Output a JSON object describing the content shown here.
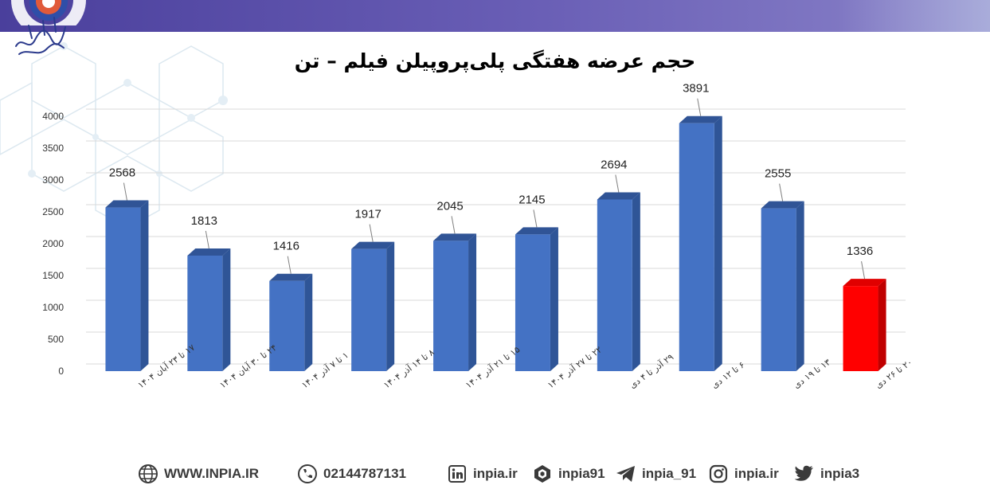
{
  "chart_data": {
    "type": "bar",
    "title": "حجم عرضه هفتگی پلی‌پروپیلن فیلم – تن",
    "categories": [
      "۱۷ تا ۲۳ آبان ۱۴۰۴",
      "۲۴ تا ۳۰ آبان ۱۴۰۴",
      "۱ تا ۷ آذر ۱۴۰۴",
      "۸ تا ۱۴ آذر ۱۴۰۴",
      "۱۵ تا ۲۱ آذر ۱۴۰۴",
      "۲۲ تا ۲۷ آذر ۱۴۰۴",
      "۲۹ آذر تا ۴ دی",
      "۶ تا ۱۲ دی",
      "۱۳ تا ۱۹ دی",
      "۲۰ تا ۲۶ دی"
    ],
    "values": [
      2568,
      1813,
      1416,
      1917,
      2045,
      2145,
      2694,
      3891,
      2555,
      1336
    ],
    "ylim": [
      0,
      4000
    ],
    "yticks": [
      0,
      500,
      1000,
      1500,
      2000,
      2500,
      3000,
      3500,
      4000
    ],
    "grid": true,
    "legend": "none",
    "colors": {
      "bar": "#4472c4",
      "bar_side": "#2f5597",
      "bar_top": "#305496",
      "highlight": "#ff0000",
      "highlight_side": "#c00000",
      "highlight_top": "#e00000"
    },
    "highlight_index": 9
  },
  "header": {
    "logo_icon": "inpia-logo-icon",
    "calligraphy": "انجمن صنایع پلیمر ایران"
  },
  "footer": {
    "website": "WWW.INPIA.IR",
    "phone": "02144787131",
    "linkedin": "inpia.ir",
    "rubika": "inpia91",
    "telegram": "inpia_91",
    "instagram": "inpia.ir",
    "twitter": "inpia3"
  }
}
